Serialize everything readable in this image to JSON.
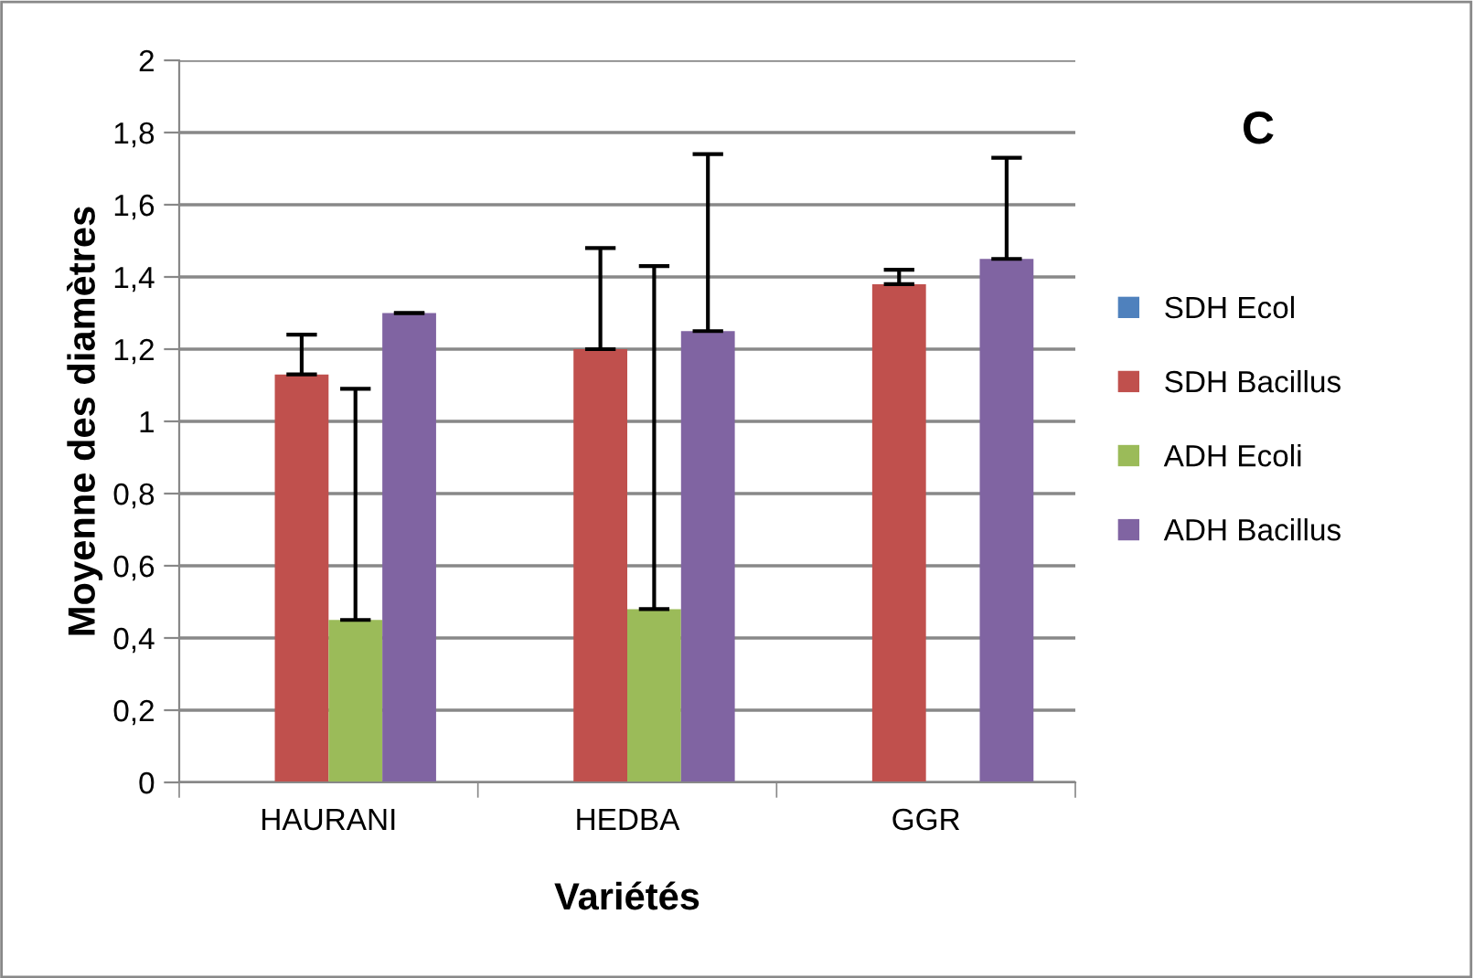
{
  "chart_data": {
    "type": "bar",
    "xlabel": "Variétés",
    "ylabel": "Moyenne des diamètres",
    "annotations": [
      "C"
    ],
    "categories": [
      "HAURANI",
      "HEDBA",
      "GGR"
    ],
    "series": [
      {
        "name": "SDH Ecol",
        "color": "#4f81bd",
        "values": [
          null,
          null,
          null
        ]
      },
      {
        "name": "SDH Bacillus",
        "color": "#c0504d",
        "values": [
          1.13,
          1.2,
          1.38
        ],
        "errors": [
          [
            1.13,
            1.24
          ],
          [
            1.2,
            1.48
          ],
          [
            1.38,
            1.42
          ]
        ]
      },
      {
        "name": "ADH Ecoli",
        "color": "#9bbb59",
        "values": [
          0.45,
          0.48,
          null
        ],
        "errors": [
          [
            0.45,
            1.09
          ],
          [
            0.48,
            1.43
          ],
          null
        ]
      },
      {
        "name": "ADH Bacillus",
        "color": "#8064a2",
        "values": [
          1.3,
          1.25,
          1.45
        ],
        "errors": [
          [
            1.3,
            1.3
          ],
          [
            1.25,
            1.74
          ],
          [
            1.45,
            1.73
          ]
        ]
      }
    ],
    "ylim": [
      0,
      2
    ],
    "yticks": [
      0,
      {
        "value": 0.2,
        "label": "0,2"
      },
      {
        "value": 0.4,
        "label": "0,4"
      },
      {
        "value": 0.6,
        "label": "0,6"
      },
      {
        "value": 0.8,
        "label": "0,8"
      },
      1,
      {
        "value": 1.2,
        "label": "1,2"
      },
      {
        "value": 1.4,
        "label": "1,4"
      },
      {
        "value": 1.6,
        "label": "1,6"
      },
      {
        "value": 1.8,
        "label": "1,8"
      },
      2
    ],
    "grid": "y",
    "legend": "right"
  }
}
